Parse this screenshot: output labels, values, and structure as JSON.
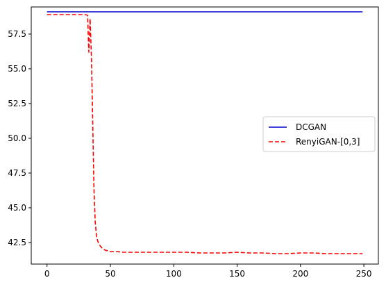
{
  "chart_data": {
    "type": "line",
    "title": "",
    "xlabel": "",
    "ylabel": "",
    "xlim": [
      -12.45,
      261.45
    ],
    "ylim": [
      40.95,
      59.45
    ],
    "xticks": [
      0,
      50,
      100,
      150,
      200,
      250
    ],
    "xtick_labels": [
      "0",
      "50",
      "100",
      "150",
      "200",
      "250"
    ],
    "yticks": [
      42.5,
      45.0,
      47.5,
      50.0,
      52.5,
      55.0,
      57.5
    ],
    "ytick_labels": [
      "42.5",
      "45.0",
      "47.5",
      "50.0",
      "52.5",
      "55.0",
      "57.5"
    ],
    "grid": false,
    "legend_position": "center-right",
    "series": [
      {
        "name": "DCGAN",
        "color": "#0000cc",
        "style": "solid",
        "x": [
          0,
          249
        ],
        "y": [
          59.1,
          59.1
        ]
      },
      {
        "name": "RenyiGAN-[0,3]",
        "color": "#ff0000",
        "style": "dashed",
        "x": [
          0,
          10,
          20,
          30,
          32,
          33,
          34,
          35,
          36,
          37,
          38,
          39,
          40,
          42,
          44,
          46,
          48,
          50,
          55,
          60,
          65,
          70,
          75,
          80,
          85,
          90,
          95,
          100,
          110,
          120,
          130,
          140,
          150,
          160,
          170,
          180,
          190,
          200,
          210,
          220,
          230,
          240,
          249
        ],
        "y": [
          58.9,
          58.9,
          58.9,
          58.9,
          58.85,
          56.2,
          58.6,
          56.0,
          51.5,
          46.5,
          44.0,
          43.0,
          42.6,
          42.25,
          42.05,
          41.95,
          41.9,
          41.85,
          41.85,
          41.8,
          41.8,
          41.8,
          41.8,
          41.8,
          41.8,
          41.8,
          41.8,
          41.8,
          41.8,
          41.75,
          41.75,
          41.75,
          41.8,
          41.75,
          41.75,
          41.7,
          41.7,
          41.75,
          41.75,
          41.7,
          41.7,
          41.7,
          41.7
        ]
      }
    ]
  }
}
